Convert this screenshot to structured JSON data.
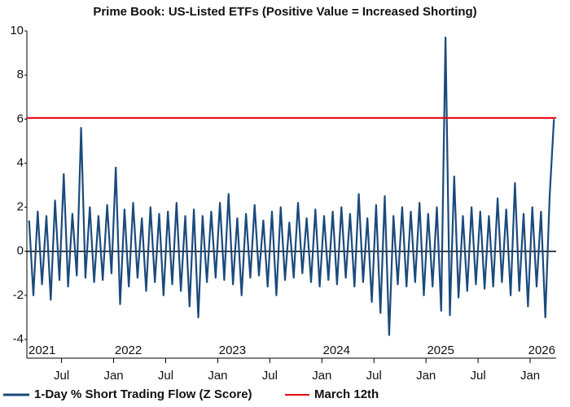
{
  "chart_data": {
    "type": "line",
    "title": "Prime Book: US-Listed ETFs (Positive Value = Increased Shorting)",
    "x": [
      "2021-03",
      "2021-03",
      "2021-04",
      "2021-04",
      "2021-05",
      "2021-05",
      "2021-06",
      "2021-06",
      "2021-07",
      "2021-07",
      "2021-08",
      "2021-08",
      "2021-09",
      "2021-09",
      "2021-10",
      "2021-10",
      "2021-11",
      "2021-11",
      "2021-12",
      "2021-12",
      "2022-01",
      "2022-01",
      "2022-02",
      "2022-02",
      "2022-03",
      "2022-03",
      "2022-04",
      "2022-04",
      "2022-05",
      "2022-05",
      "2022-06",
      "2022-06",
      "2022-07",
      "2022-07",
      "2022-08",
      "2022-08",
      "2022-09",
      "2022-09",
      "2022-10",
      "2022-10",
      "2022-11",
      "2022-11",
      "2022-12",
      "2022-12",
      "2023-01",
      "2023-01",
      "2023-02",
      "2023-02",
      "2023-03",
      "2023-03",
      "2023-04",
      "2023-04",
      "2023-05",
      "2023-05",
      "2023-06",
      "2023-06",
      "2023-07",
      "2023-07",
      "2023-08",
      "2023-08",
      "2023-09",
      "2023-09",
      "2023-10",
      "2023-10",
      "2023-11",
      "2023-11",
      "2023-12",
      "2023-12",
      "2024-01",
      "2024-01",
      "2024-02",
      "2024-02",
      "2024-03",
      "2024-03",
      "2024-04",
      "2024-04",
      "2024-05",
      "2024-05",
      "2024-06",
      "2024-06",
      "2024-07",
      "2024-07",
      "2024-08",
      "2024-08",
      "2024-09",
      "2024-09",
      "2024-10",
      "2024-10",
      "2024-11",
      "2024-11",
      "2024-12",
      "2024-12",
      "2025-01",
      "2025-01",
      "2025-02",
      "2025-02",
      "2025-03",
      "2025-03",
      "2025-04",
      "2025-04",
      "2025-05",
      "2025-05",
      "2025-06",
      "2025-06",
      "2025-07",
      "2025-07",
      "2025-08",
      "2025-08",
      "2025-09",
      "2025-09",
      "2025-10",
      "2025-10",
      "2025-11",
      "2025-11",
      "2025-12",
      "2025-12",
      "2026-01",
      "2026-01",
      "2026-02",
      "2026-02",
      "2026-03",
      "2026-03"
    ],
    "series": [
      {
        "name": "1-Day % Short Trading Flow (Z Score)",
        "color": "#1b4a7c",
        "values": [
          1.4,
          -2.0,
          1.8,
          -1.5,
          1.6,
          -2.2,
          2.3,
          -1.3,
          3.5,
          -1.6,
          1.7,
          -1.1,
          5.6,
          -1.2,
          2.0,
          -1.4,
          1.6,
          -1.3,
          2.1,
          -1.0,
          3.8,
          -2.4,
          1.9,
          -1.6,
          2.2,
          -1.2,
          1.5,
          -1.8,
          2.0,
          -1.4,
          1.7,
          -2.0,
          1.8,
          -1.5,
          2.2,
          -1.8,
          1.6,
          -2.5,
          1.9,
          -3.0,
          1.6,
          -1.4,
          1.8,
          -1.2,
          2.2,
          -1.3,
          2.6,
          -1.5,
          1.5,
          -2.0,
          1.7,
          -1.2,
          2.1,
          -1.1,
          1.4,
          -1.6,
          1.8,
          -2.0,
          2.0,
          -1.3,
          1.3,
          -1.2,
          2.2,
          -1.0,
          1.5,
          -1.4,
          1.9,
          -1.6,
          1.6,
          -1.3,
          1.8,
          -1.5,
          2.0,
          -1.2,
          1.7,
          -1.6,
          2.6,
          -1.4,
          1.5,
          -2.3,
          2.1,
          -2.8,
          2.5,
          -3.8,
          1.6,
          -1.5,
          2.0,
          -1.6,
          1.8,
          -1.4,
          2.2,
          -2.0,
          1.7,
          -1.6,
          2.0,
          -2.7,
          9.7,
          -2.9,
          3.4,
          -2.1,
          1.6,
          -1.8,
          2.0,
          -1.5,
          1.8,
          -1.7,
          1.6,
          -1.6,
          2.4,
          -1.4,
          1.9,
          -2.0,
          3.1,
          -1.8,
          1.7,
          -2.5,
          2.0,
          -1.6,
          1.8,
          -3.0,
          2.5,
          6.0
        ]
      }
    ],
    "reference_line": {
      "name": "March 12th",
      "value": 6.05,
      "color": "#e8000b"
    },
    "xlim": [
      "2021-03",
      "2026-04"
    ],
    "xticks": [
      {
        "value": "2021-07",
        "label": "Jul"
      },
      {
        "value": "2022-01",
        "label": "Jan"
      },
      {
        "value": "2022-07",
        "label": "Jul"
      },
      {
        "value": "2023-01",
        "label": "Jan"
      },
      {
        "value": "2023-07",
        "label": "Jul"
      },
      {
        "value": "2024-01",
        "label": "Jan"
      },
      {
        "value": "2024-07",
        "label": "Jul"
      },
      {
        "value": "2025-01",
        "label": "Jan"
      },
      {
        "value": "2025-07",
        "label": "Jul"
      },
      {
        "value": "2026-01",
        "label": "Jan"
      }
    ],
    "year_labels": [
      "2021",
      "2022",
      "2023",
      "2024",
      "2025",
      "2026"
    ],
    "ylim": [
      -4.85,
      10
    ],
    "yticks": [
      -4,
      -2,
      0,
      2,
      4,
      6,
      8,
      10
    ]
  }
}
